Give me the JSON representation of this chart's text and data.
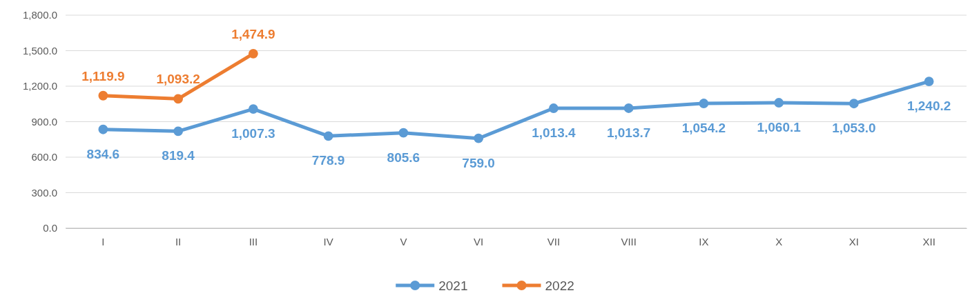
{
  "chart_data": {
    "type": "line",
    "categories": [
      "I",
      "II",
      "III",
      "IV",
      "V",
      "VI",
      "VII",
      "VIII",
      "IX",
      "X",
      "XI",
      "XII"
    ],
    "series": [
      {
        "name": "2021",
        "color": "#5b9bd5",
        "values": [
          834.6,
          819.4,
          1007.3,
          778.9,
          805.6,
          759.0,
          1013.4,
          1013.7,
          1054.2,
          1060.1,
          1053.0,
          1240.2
        ],
        "value_labels": [
          "834.6",
          "819.4",
          "1,007.3",
          "778.9",
          "805.6",
          "759.0",
          "1,013.4",
          "1,013.7",
          "1,054.2",
          "1,060.1",
          "1,053.0",
          "1,240.2"
        ]
      },
      {
        "name": "2022",
        "color": "#ed7d31",
        "values": [
          1119.9,
          1093.2,
          1474.9,
          null,
          null,
          null,
          null,
          null,
          null,
          null,
          null,
          null
        ],
        "value_labels": [
          "1,119.9",
          "1,093.2",
          "1,474.9",
          null,
          null,
          null,
          null,
          null,
          null,
          null,
          null,
          null
        ]
      }
    ],
    "ylim": [
      0,
      1800
    ],
    "yticks": [
      {
        "value": 0,
        "label": "0.0"
      },
      {
        "value": 300,
        "label": "300.0"
      },
      {
        "value": 600,
        "label": "600.0"
      },
      {
        "value": 900,
        "label": "900.0"
      },
      {
        "value": 1200,
        "label": "1,200.0"
      },
      {
        "value": 1500,
        "label": "1,500.0"
      },
      {
        "value": 1800,
        "label": "1,800.0"
      }
    ],
    "grid": "y",
    "legend": "bottom",
    "marker": "circle",
    "line_style": "solid"
  }
}
